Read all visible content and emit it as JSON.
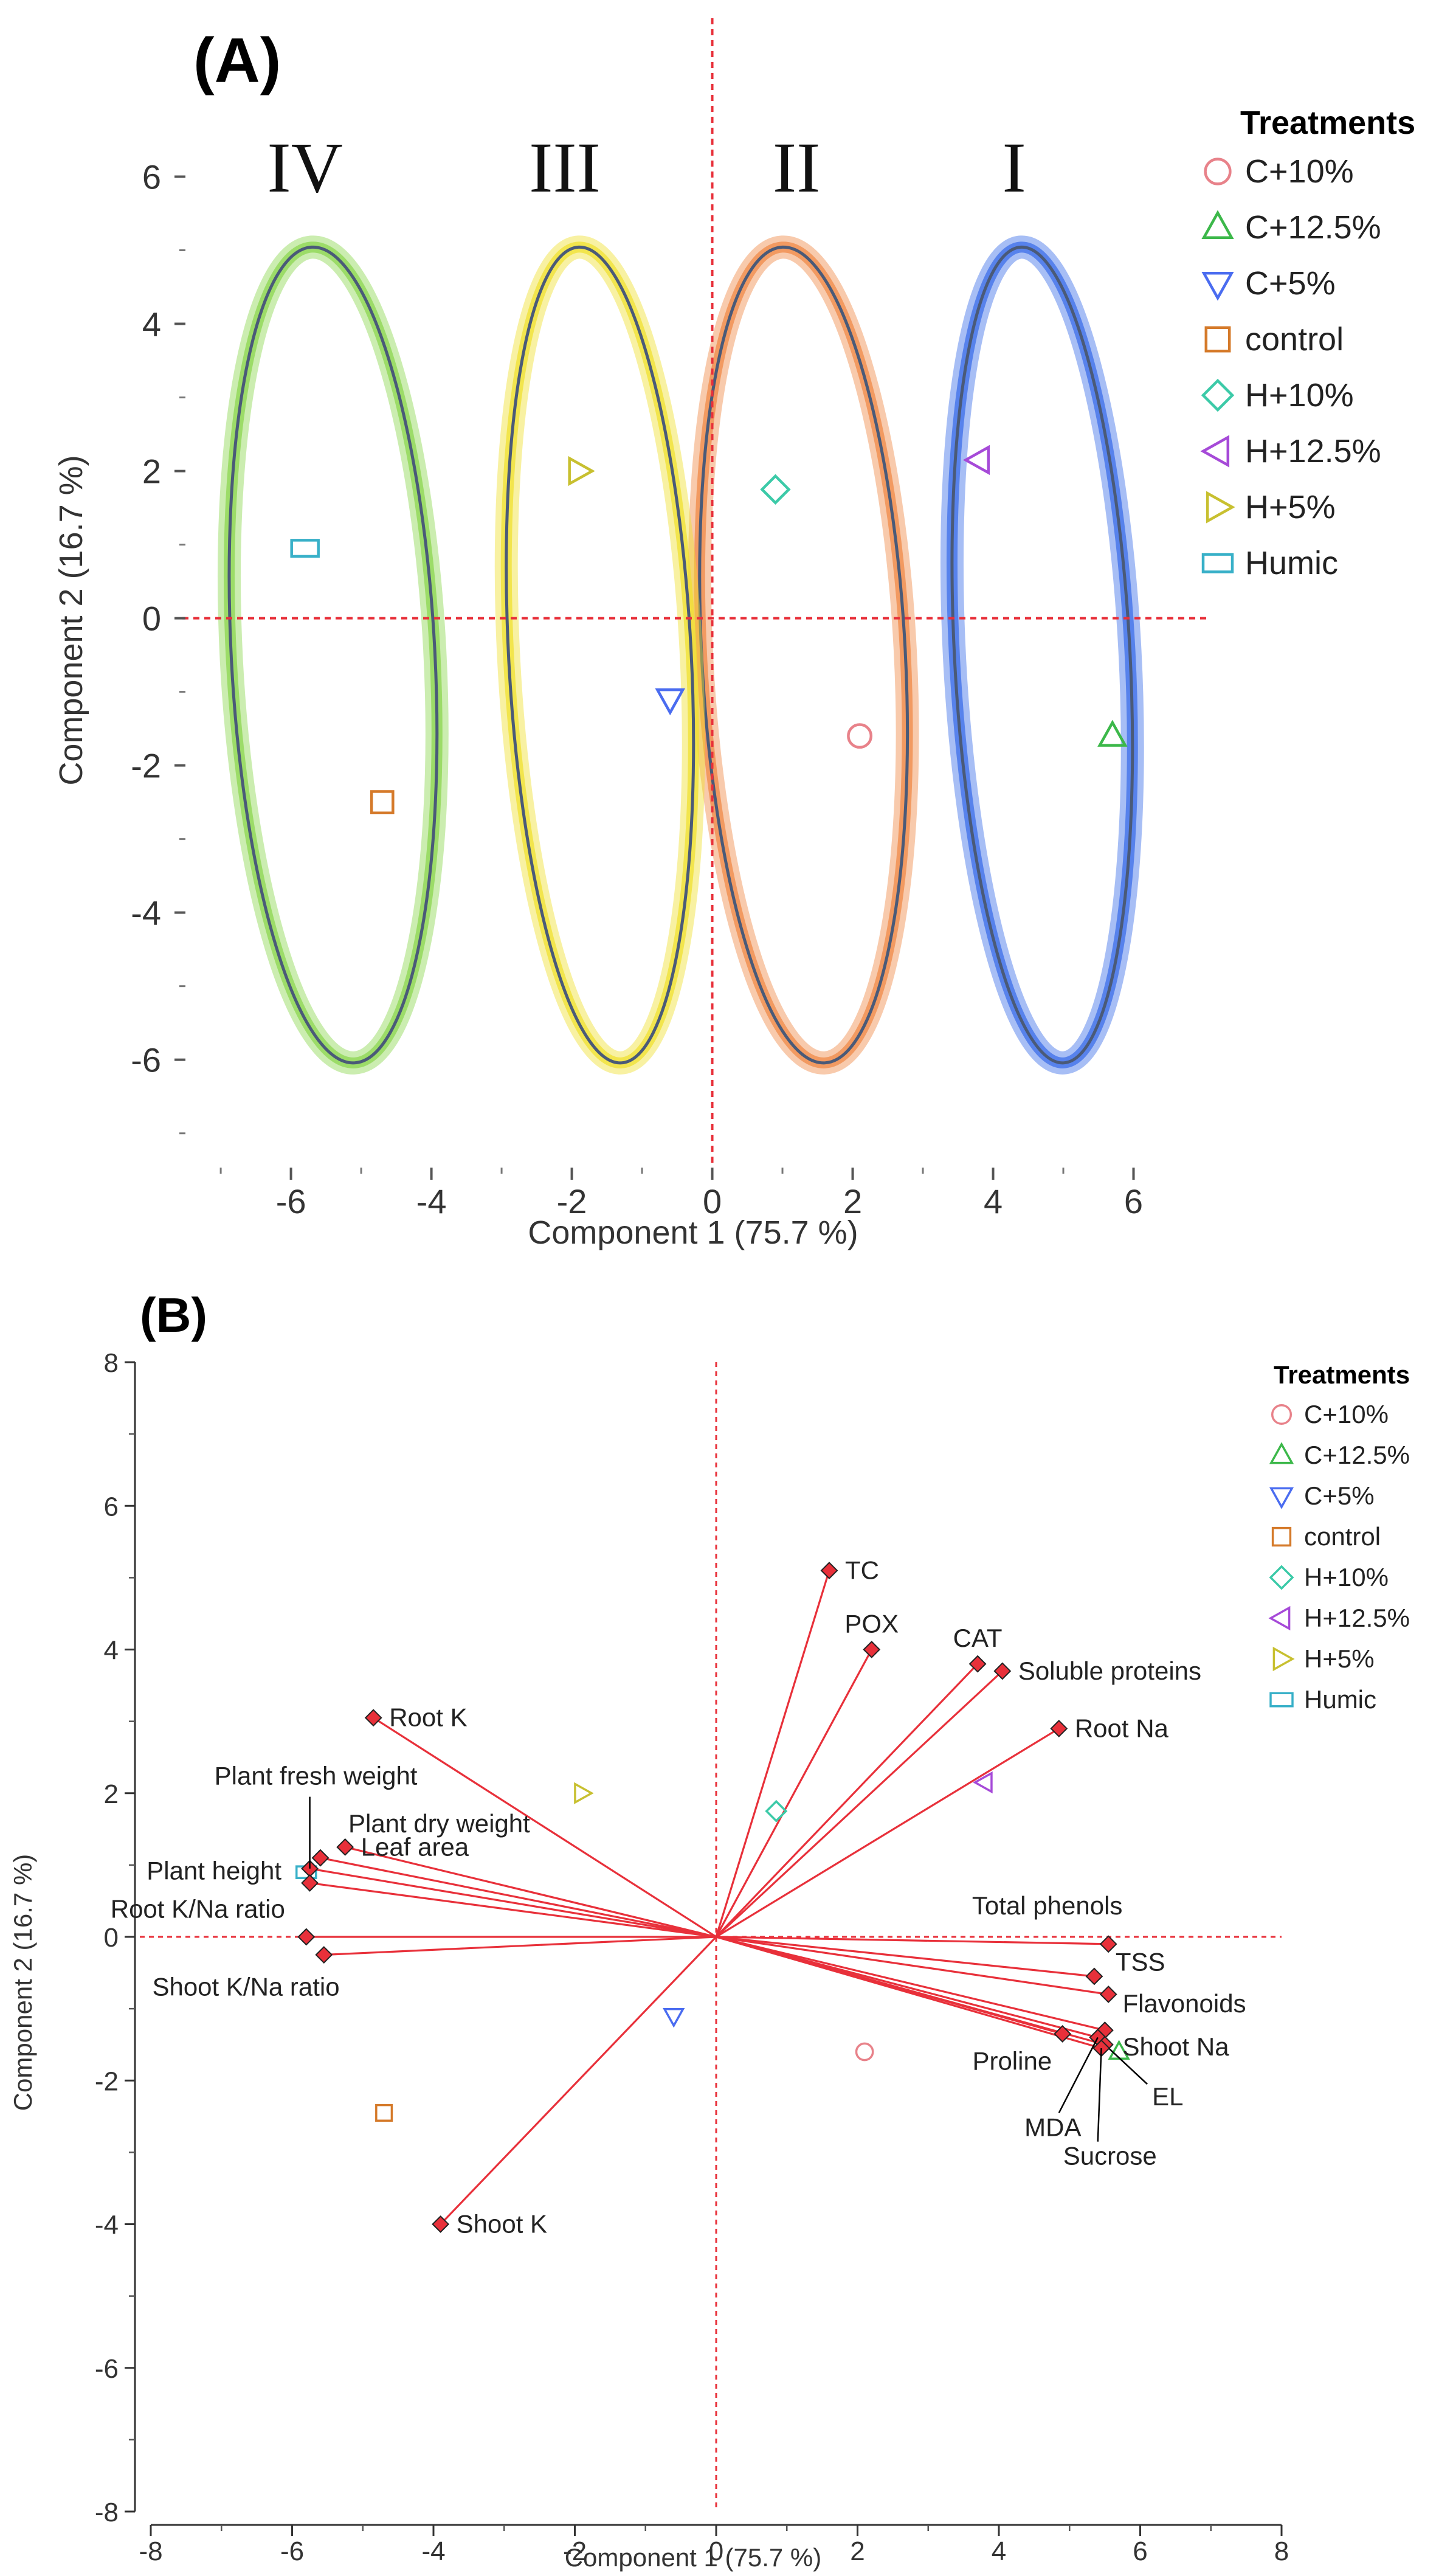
{
  "colors": {
    "C+10%": "#e8828a",
    "C+12.5%": "#3cb84a",
    "C+5%": "#4a6cf0",
    "control": "#d57a2a",
    "H+10%": "#3ccaa8",
    "H+12.5%": "#a64ad8",
    "H+5%": "#c8c030",
    "Humic": "#38b0c8",
    "ref_line": "#e8303a",
    "vector": "#e8303a",
    "var_marker": "#e8303a",
    "ellipse_I": "#3c6ee8",
    "ellipse_II": "#f08a48",
    "ellipse_III": "#f0e030",
    "ellipse_IV": "#8cd650",
    "ellipse_stroke": "#4a5a78"
  },
  "chart_data": [
    {
      "panel": "(A)",
      "type": "scatter",
      "xlabel": "Component 1  (75.7 %)",
      "ylabel": "Component 2  (16.7 %)",
      "xlim": [
        -7.2,
        7.0
      ],
      "ylim": [
        -7.3,
        6.5
      ],
      "xticks": [
        -6,
        -4,
        -2,
        0,
        2,
        4,
        6
      ],
      "yticks": [
        -6,
        -4,
        -2,
        0,
        2,
        4,
        6
      ],
      "grid": false,
      "reference_lines": {
        "x": 0,
        "y": 0
      },
      "legend": {
        "title": "Treatments",
        "position": "top-right",
        "entries": [
          "C+10%",
          "C+12.5%",
          "C+5%",
          "control",
          "H+10%",
          "H+12.5%",
          "H+5%",
          "Humic"
        ]
      },
      "points": [
        {
          "label": "C+10%",
          "marker": "circle",
          "x": 2.1,
          "y": -1.6
        },
        {
          "label": "C+12.5%",
          "marker": "triangle-up",
          "x": 5.7,
          "y": -1.6
        },
        {
          "label": "C+5%",
          "marker": "triangle-down",
          "x": -0.6,
          "y": -1.1
        },
        {
          "label": "control",
          "marker": "square",
          "x": -4.7,
          "y": -2.5
        },
        {
          "label": "H+10%",
          "marker": "diamond",
          "x": 0.9,
          "y": 1.75
        },
        {
          "label": "H+12.5%",
          "marker": "triangle-left",
          "x": 3.8,
          "y": 2.15
        },
        {
          "label": "H+5%",
          "marker": "triangle-right",
          "x": -1.9,
          "y": 2.0
        },
        {
          "label": "Humic",
          "marker": "rect",
          "x": -5.8,
          "y": 0.95
        }
      ],
      "ellipses": [
        {
          "group": "I",
          "cx": 4.7,
          "cy": -0.5,
          "rx": 1.25,
          "ry": 5.55,
          "rot_deg": -3
        },
        {
          "group": "II",
          "cx": 1.3,
          "cy": -0.5,
          "rx": 1.45,
          "ry": 5.55,
          "rot_deg": -3
        },
        {
          "group": "III",
          "cx": -1.6,
          "cy": -0.5,
          "rx": 1.3,
          "ry": 5.55,
          "rot_deg": -3
        },
        {
          "group": "IV",
          "cx": -5.4,
          "cy": -0.5,
          "rx": 1.45,
          "ry": 5.55,
          "rot_deg": -3
        }
      ],
      "group_labels": [
        {
          "text": "IV",
          "x": -5.8
        },
        {
          "text": "III",
          "x": -2.1
        },
        {
          "text": "II",
          "x": 1.2
        },
        {
          "text": "I",
          "x": 4.3
        }
      ]
    },
    {
      "panel": "(B)",
      "type": "scatter",
      "subtype": "biplot",
      "xlabel": "Component 1  (75.7 %)",
      "ylabel": "Component 2  (16.7 %)",
      "xlim": [
        -8,
        8
      ],
      "ylim": [
        -8,
        8
      ],
      "xticks": [
        -8,
        -6,
        -4,
        -2,
        0,
        2,
        4,
        6,
        8
      ],
      "yticks": [
        -8,
        -6,
        -4,
        -2,
        0,
        2,
        4,
        6,
        8
      ],
      "grid": false,
      "reference_lines": {
        "x": 0,
        "y": 0
      },
      "legend": {
        "title": "Treatments",
        "position": "top-right",
        "entries": [
          "C+10%",
          "C+12.5%",
          "C+5%",
          "control",
          "H+10%",
          "H+12.5%",
          "H+5%",
          "Humic"
        ]
      },
      "points": [
        {
          "label": "C+10%",
          "marker": "circle",
          "x": 2.1,
          "y": -1.6
        },
        {
          "label": "C+12.5%",
          "marker": "triangle-up",
          "x": 5.7,
          "y": -1.6
        },
        {
          "label": "C+5%",
          "marker": "triangle-down",
          "x": -0.6,
          "y": -1.1
        },
        {
          "label": "control",
          "marker": "square",
          "x": -4.7,
          "y": -2.45
        },
        {
          "label": "H+10%",
          "marker": "diamond",
          "x": 0.85,
          "y": 1.75
        },
        {
          "label": "H+12.5%",
          "marker": "triangle-left",
          "x": 3.8,
          "y": 2.15
        },
        {
          "label": "H+5%",
          "marker": "triangle-right",
          "x": -1.9,
          "y": 2.0
        },
        {
          "label": "Humic",
          "marker": "rect",
          "x": -5.8,
          "y": 0.9
        }
      ],
      "loadings": [
        {
          "name": "TC",
          "x": 1.6,
          "y": 5.1,
          "label_pos": "right"
        },
        {
          "name": "POX",
          "x": 2.2,
          "y": 4.0,
          "label_pos": "above"
        },
        {
          "name": "CAT",
          "x": 3.7,
          "y": 3.8,
          "label_pos": "above"
        },
        {
          "name": "Soluble proteins",
          "x": 4.05,
          "y": 3.7,
          "label_pos": "right"
        },
        {
          "name": "Root Na",
          "x": 4.85,
          "y": 2.9,
          "label_pos": "right"
        },
        {
          "name": "Total phenols",
          "x": 5.55,
          "y": -0.1,
          "label_pos": "above-left"
        },
        {
          "name": "TSS",
          "x": 5.35,
          "y": -0.55,
          "label_pos": "right"
        },
        {
          "name": "Flavonoids",
          "x": 5.55,
          "y": -0.8,
          "label_pos": "right"
        },
        {
          "name": "Shoot Na",
          "x": 5.5,
          "y": -1.3,
          "label_pos": "right"
        },
        {
          "name": "Proline",
          "x": 4.9,
          "y": -1.35,
          "label_pos": "left"
        },
        {
          "name": "MDA",
          "x": 5.4,
          "y": -1.4,
          "label_pos": "below-left"
        },
        {
          "name": "EL",
          "x": 5.5,
          "y": -1.5,
          "label_pos": "below-right"
        },
        {
          "name": "Sucrose",
          "x": 5.45,
          "y": -1.55,
          "label_pos": "below"
        },
        {
          "name": "Root K",
          "x": -4.85,
          "y": 3.05,
          "label_pos": "right"
        },
        {
          "name": "Plant fresh weight",
          "x": -5.75,
          "y": 0.95,
          "label_pos": "above"
        },
        {
          "name": "Plant dry weight",
          "x": -5.6,
          "y": 1.1,
          "label_pos": "above-right"
        },
        {
          "name": "Leaf area",
          "x": -5.25,
          "y": 1.25,
          "label_pos": "right"
        },
        {
          "name": "Plant height",
          "x": -5.75,
          "y": 0.75,
          "label_pos": "left"
        },
        {
          "name": "Root K/Na ratio",
          "x": -5.8,
          "y": 0.0,
          "label_pos": "left"
        },
        {
          "name": "Shoot K/Na ratio",
          "x": -5.55,
          "y": -0.25,
          "label_pos": "below-left"
        },
        {
          "name": "Shoot K",
          "x": -3.9,
          "y": -4.0,
          "label_pos": "right"
        }
      ]
    }
  ]
}
